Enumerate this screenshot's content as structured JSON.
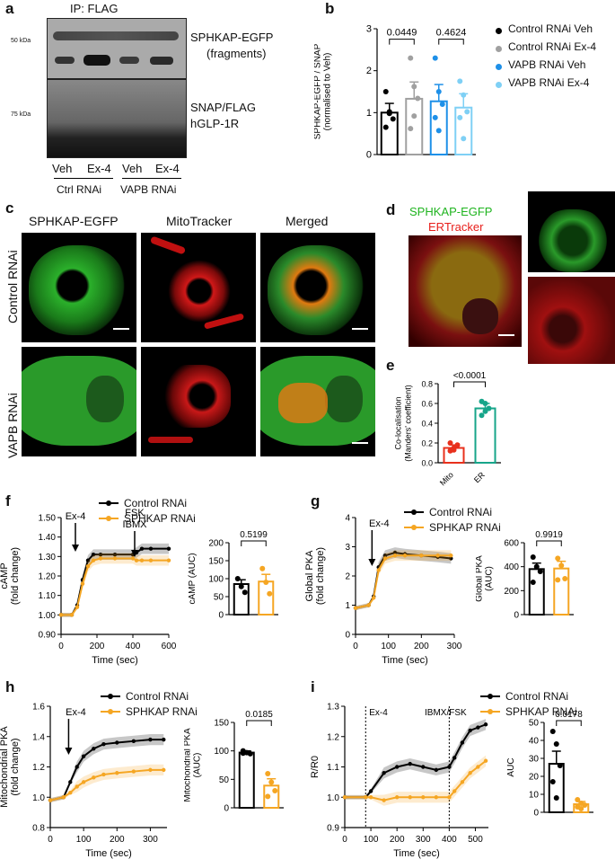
{
  "panel_letters": [
    "a",
    "b",
    "c",
    "d",
    "e",
    "f",
    "g",
    "h",
    "i"
  ],
  "a": {
    "title": "IP: FLAG",
    "kda_top": "50 kDa",
    "kda_bottom": "75 kDa",
    "label_top_1": "SPHKAP-EGFP",
    "label_top_2": "(fragments)",
    "label_bottom_1": "SNAP/FLAG",
    "label_bottom_2": "hGLP-1R",
    "lanes": [
      "Veh",
      "Ex-4",
      "Veh",
      "Ex-4"
    ],
    "groups": [
      "Ctrl RNAi",
      "VAPB RNAi"
    ]
  },
  "b_legend": [
    "Control RNAi Veh",
    "Control RNAi Ex-4",
    "VAPB RNAi Veh",
    "VAPB RNAi Ex-4"
  ],
  "c": {
    "col_titles": [
      "SPHKAP-EGFP",
      "MitoTracker",
      "Merged"
    ],
    "row_titles": [
      "Control RNAi",
      "VAPB RNAi"
    ]
  },
  "d": {
    "title_green": "SPHKAP-EGFP",
    "title_red": "ERTracker"
  },
  "fgh_legend": [
    "Control RNAi",
    "SPHKAP RNAi"
  ],
  "colors": {
    "black": "#000000",
    "orange": "#f5a623",
    "blue": "#1e90e8",
    "lightblue": "#7fd0f5",
    "gray": "#a0a0a0",
    "teal": "#17a58a",
    "red": "#e8301c"
  },
  "chart_data": [
    {
      "id": "b",
      "type": "bar",
      "categories": [
        "Control RNAi Veh",
        "Control RNAi Ex-4",
        "VAPB RNAi Veh",
        "VAPB RNAi Ex-4"
      ],
      "values": [
        1.0,
        1.33,
        1.27,
        1.12
      ],
      "errors": [
        0.22,
        0.4,
        0.4,
        0.33
      ],
      "points": [
        [
          1.5,
          1.02,
          0.85,
          0.65,
          0.98
        ],
        [
          2.3,
          1.62,
          1.34,
          0.62,
          0.92
        ],
        [
          2.3,
          1.5,
          1.2,
          0.88,
          0.57
        ],
        [
          1.75,
          1.42,
          1.02,
          0.88,
          0.38
        ]
      ],
      "ylabel": "SPHKAP-EGFP / SNAP (normalised to Veh)",
      "ylim": [
        0,
        3
      ],
      "yticks": [
        0,
        1,
        2,
        3
      ],
      "pvalues": [
        "0.0449",
        "0.4624"
      ]
    },
    {
      "id": "e",
      "type": "bar",
      "categories": [
        "Mito",
        "ER"
      ],
      "values": [
        0.15,
        0.55
      ],
      "errors": [
        0.03,
        0.05
      ],
      "points": [
        [
          0.12,
          0.15,
          0.18,
          0.2,
          0.13
        ],
        [
          0.48,
          0.52,
          0.55,
          0.62,
          0.6
        ]
      ],
      "ylabel": "Co-localisation (Manders' coefficient)",
      "ylim": [
        0,
        0.8
      ],
      "yticks": [
        0.0,
        0.2,
        0.4,
        0.6,
        0.8
      ],
      "pvalues": [
        "<0.0001"
      ]
    },
    {
      "id": "f-line",
      "type": "line",
      "ylabel": "cAMP (fold change)",
      "xlabel": "Time (sec)",
      "xlim": [
        0,
        600
      ],
      "ylim": [
        0.9,
        1.5
      ],
      "xticks": [
        0,
        200,
        400,
        600
      ],
      "yticks": [
        0.9,
        1.0,
        1.1,
        1.2,
        1.3,
        1.4,
        1.5
      ],
      "annotations": [
        "Ex-4",
        "FSK",
        "IBMX"
      ],
      "series": [
        {
          "name": "Control RNAi",
          "x": [
            0,
            60,
            90,
            120,
            150,
            180,
            220,
            300,
            400,
            420,
            450,
            500,
            600
          ],
          "y": [
            1.0,
            1.0,
            1.05,
            1.18,
            1.28,
            1.31,
            1.31,
            1.31,
            1.31,
            1.32,
            1.34,
            1.34,
            1.34
          ]
        },
        {
          "name": "SPHKAP RNAi",
          "x": [
            0,
            60,
            90,
            120,
            150,
            180,
            220,
            300,
            400,
            420,
            450,
            500,
            600
          ],
          "y": [
            1.0,
            1.0,
            1.04,
            1.16,
            1.25,
            1.28,
            1.29,
            1.29,
            1.29,
            1.28,
            1.28,
            1.28,
            1.28
          ]
        }
      ]
    },
    {
      "id": "f-bar",
      "type": "bar",
      "categories": [
        "Control RNAi",
        "SPHKAP RNAi"
      ],
      "values": [
        85,
        92
      ],
      "errors": [
        12,
        20
      ],
      "points": [
        [
          100,
          78,
          62
        ],
        [
          128,
          90,
          58
        ]
      ],
      "ylabel": "cAMP (AUC)",
      "ylim": [
        0,
        200
      ],
      "yticks": [
        0,
        50,
        100,
        150,
        200
      ],
      "pvalues": [
        "0.5199"
      ]
    },
    {
      "id": "g-line",
      "type": "line",
      "ylabel": "Global PKA (fold change)",
      "xlabel": "Time (sec)",
      "xlim": [
        0,
        300
      ],
      "ylim": [
        0,
        4
      ],
      "xticks": [
        0,
        100,
        200,
        300
      ],
      "yticks": [
        0,
        1,
        2,
        3,
        4
      ],
      "annotations": [
        "Ex-4"
      ],
      "series": [
        {
          "name": "Control RNAi",
          "x": [
            0,
            40,
            55,
            70,
            90,
            120,
            150,
            200,
            250,
            290
          ],
          "y": [
            0.9,
            1.0,
            1.3,
            2.3,
            2.7,
            2.8,
            2.75,
            2.7,
            2.65,
            2.6
          ]
        },
        {
          "name": "SPHKAP RNAi",
          "x": [
            0,
            40,
            55,
            70,
            90,
            120,
            150,
            200,
            250,
            290
          ],
          "y": [
            0.9,
            1.0,
            1.25,
            2.2,
            2.6,
            2.7,
            2.7,
            2.7,
            2.7,
            2.7
          ]
        }
      ]
    },
    {
      "id": "g-bar",
      "type": "bar",
      "categories": [
        "Control RNAi",
        "SPHKAP RNAi"
      ],
      "values": [
        380,
        385
      ],
      "errors": [
        50,
        60
      ],
      "points": [
        [
          480,
          400,
          360,
          270
        ],
        [
          470,
          410,
          300,
          290
        ]
      ],
      "ylabel": "Global PKA (AUC)",
      "ylim": [
        0,
        600
      ],
      "yticks": [
        0,
        200,
        400,
        600
      ],
      "pvalues": [
        "0.9919"
      ]
    },
    {
      "id": "h-line",
      "type": "line",
      "ylabel": "Mitochondrial PKA (fold change)",
      "xlabel": "Time (sec)",
      "xlim": [
        0,
        350
      ],
      "ylim": [
        0.8,
        1.6
      ],
      "xticks": [
        0,
        100,
        200,
        300
      ],
      "yticks": [
        0.8,
        1.0,
        1.2,
        1.4,
        1.6
      ],
      "annotations": [
        "Ex-4"
      ],
      "series": [
        {
          "name": "Control RNAi",
          "x": [
            0,
            40,
            60,
            80,
            100,
            130,
            160,
            200,
            250,
            300,
            340
          ],
          "y": [
            0.98,
            1.0,
            1.1,
            1.2,
            1.27,
            1.32,
            1.35,
            1.36,
            1.37,
            1.38,
            1.38
          ]
        },
        {
          "name": "SPHKAP RNAi",
          "x": [
            0,
            40,
            60,
            80,
            100,
            130,
            160,
            200,
            250,
            300,
            340
          ],
          "y": [
            0.98,
            1.0,
            1.03,
            1.07,
            1.1,
            1.13,
            1.15,
            1.16,
            1.17,
            1.18,
            1.18
          ]
        }
      ]
    },
    {
      "id": "h-bar",
      "type": "bar",
      "categories": [
        "Control RNAi",
        "SPHKAP RNAi"
      ],
      "values": [
        97,
        39
      ],
      "errors": [
        3,
        12
      ],
      "points": [
        [
          100,
          97,
          95,
          96
        ],
        [
          60,
          45,
          30,
          20
        ]
      ],
      "ylabel": "Mitochondrial PKA (AUC)",
      "ylim": [
        0,
        150
      ],
      "yticks": [
        0,
        50,
        100,
        150
      ],
      "pvalues": [
        "0.0185"
      ]
    },
    {
      "id": "i-line",
      "type": "line",
      "ylabel": "R/R0",
      "xlabel": "Time (sec)",
      "xlim": [
        0,
        550
      ],
      "ylim": [
        0.9,
        1.3
      ],
      "xticks": [
        0,
        100,
        200,
        300,
        400,
        500
      ],
      "yticks": [
        0.9,
        1.0,
        1.1,
        1.2,
        1.3
      ],
      "annotations": [
        "Ex-4",
        "IBMX/FSK"
      ],
      "vlines": [
        80,
        400
      ],
      "series": [
        {
          "name": "Control RNAi",
          "x": [
            0,
            80,
            100,
            150,
            200,
            250,
            300,
            350,
            400,
            420,
            450,
            480,
            510,
            540
          ],
          "y": [
            1.0,
            1.0,
            1.02,
            1.08,
            1.1,
            1.11,
            1.1,
            1.09,
            1.1,
            1.13,
            1.18,
            1.22,
            1.23,
            1.24
          ]
        },
        {
          "name": "SPHKAP RNAi",
          "x": [
            0,
            80,
            100,
            150,
            200,
            250,
            300,
            350,
            400,
            420,
            450,
            480,
            510,
            540
          ],
          "y": [
            1.0,
            1.0,
            1.0,
            0.99,
            1.0,
            1.0,
            1.0,
            1.0,
            1.0,
            1.02,
            1.05,
            1.08,
            1.1,
            1.12
          ]
        }
      ]
    },
    {
      "id": "i-bar",
      "type": "bar",
      "categories": [
        "Control RNAi",
        "SPHKAP RNAi"
      ],
      "values": [
        27,
        4.5
      ],
      "errors": [
        7,
        1.5
      ],
      "points": [
        [
          45,
          38,
          26,
          17,
          8
        ],
        [
          7,
          5,
          4,
          3,
          2
        ]
      ],
      "ylabel": "AUC",
      "ylim": [
        0,
        50
      ],
      "yticks": [
        0,
        10,
        20,
        30,
        40,
        50
      ],
      "pvalues": [
        "0.0178"
      ]
    }
  ]
}
